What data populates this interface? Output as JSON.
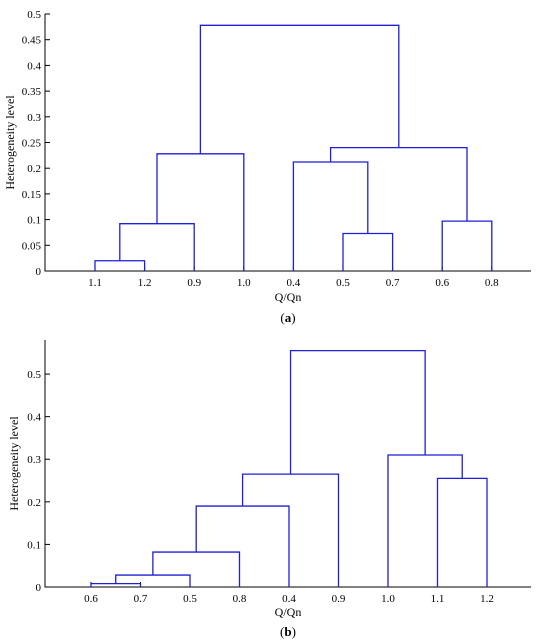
{
  "chart_data": [
    {
      "type": "dendrogram",
      "panel_label": "(a)",
      "panel_letter": "a",
      "xlabel": "Q/Qn",
      "ylabel": "Heterogeneity level",
      "ylim": [
        0,
        0.5
      ],
      "yticks": [
        0,
        0.05,
        0.1,
        0.15,
        0.2,
        0.25,
        0.3,
        0.35,
        0.4,
        0.45,
        0.5
      ],
      "ytick_labels": [
        "0",
        "0.05",
        "0.1",
        "0.15",
        "0.2",
        "0.25",
        "0.3",
        "0.35",
        "0.4",
        "0.45",
        "0.5"
      ],
      "leaves": [
        "1.1",
        "1.2",
        "0.9",
        "1.0",
        "0.4",
        "0.5",
        "0.7",
        "0.6",
        "0.8"
      ],
      "merges": [
        {
          "left": 0,
          "right": 1,
          "height": 0.02
        },
        {
          "left": 9,
          "right": 2,
          "height": 0.092
        },
        {
          "left": 5,
          "right": 6,
          "height": 0.073
        },
        {
          "left": 7,
          "right": 8,
          "height": 0.097
        },
        {
          "left": 4,
          "right": 11,
          "height": 0.212
        },
        {
          "left": 10,
          "right": 3,
          "height": 0.228
        },
        {
          "left": 13,
          "right": 12,
          "height": 0.24
        },
        {
          "left": 14,
          "right": 15,
          "height": 0.478
        }
      ]
    },
    {
      "type": "dendrogram",
      "panel_label": "(b)",
      "panel_letter": "b",
      "xlabel": "Q/Qn",
      "ylabel": "Heterogeneity level",
      "ylim": [
        0,
        0.58
      ],
      "yticks": [
        0,
        0.1,
        0.2,
        0.3,
        0.4,
        0.5
      ],
      "ytick_labels": [
        "0",
        "0.1",
        "0.2",
        "0.3",
        "0.4",
        "0.5"
      ],
      "leaves": [
        "0.6",
        "0.7",
        "0.5",
        "0.8",
        "0.4",
        "0.9",
        "1.0",
        "1.1",
        "1.2"
      ],
      "merges": [
        {
          "left": 0,
          "right": 1,
          "height": 0.008
        },
        {
          "left": 9,
          "right": 2,
          "height": 0.028
        },
        {
          "left": 10,
          "right": 3,
          "height": 0.082
        },
        {
          "left": 11,
          "right": 4,
          "height": 0.19
        },
        {
          "left": 7,
          "right": 8,
          "height": 0.255
        },
        {
          "left": 12,
          "right": 5,
          "height": 0.265
        },
        {
          "left": 6,
          "right": 13,
          "height": 0.31
        },
        {
          "left": 14,
          "right": 15,
          "height": 0.555
        }
      ]
    }
  ]
}
